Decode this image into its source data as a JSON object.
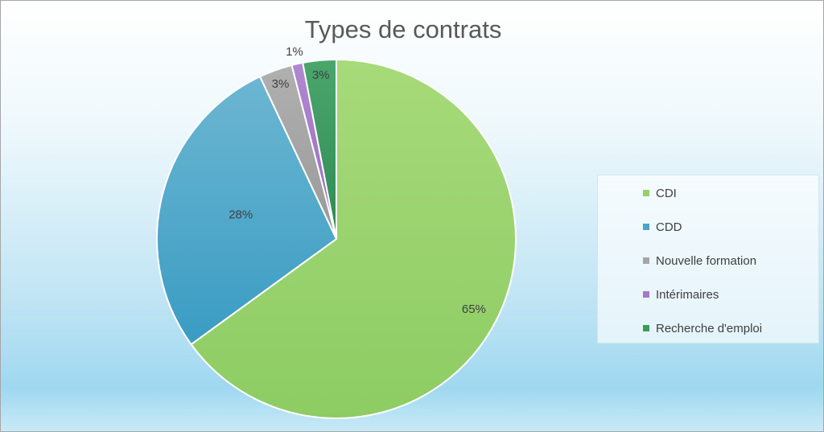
{
  "chart_data": {
    "type": "pie",
    "title": "Types de contrats",
    "categories": [
      "CDI",
      "CDD",
      "Nouvelle formation",
      "Intérimaires",
      "Recherche d'emploi"
    ],
    "values": [
      65,
      28,
      3,
      1,
      3
    ],
    "data_labels": [
      "65%",
      "28%",
      "3%",
      "1%",
      "3%"
    ],
    "colors": [
      "#97cf68",
      "#4aa6c9",
      "#a6a6a6",
      "#a678c8",
      "#3d9a5e"
    ],
    "legend_position": "right"
  }
}
